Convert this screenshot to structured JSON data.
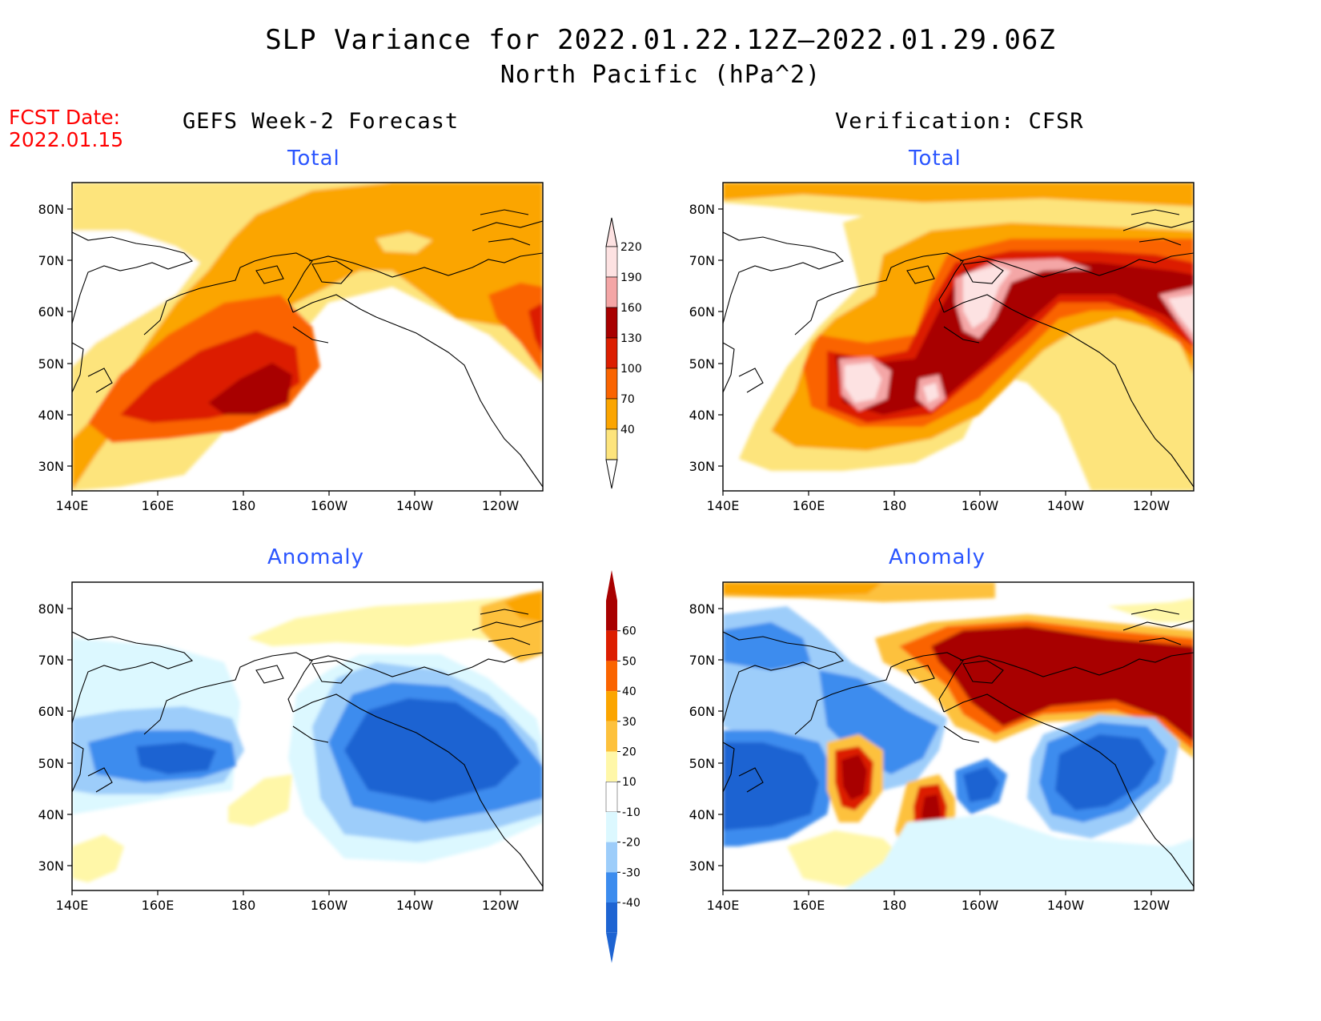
{
  "title": "SLP Variance for 2022.01.22.12Z–2022.01.29.06Z",
  "subtitle": "North Pacific (hPa^2)",
  "fcst_date_label": "FCST Date:",
  "fcst_date_value": "2022.01.15",
  "left_heading": "GEFS Week-2 Forecast",
  "right_heading": "Verification: CFSR",
  "panel_total_label": "Total",
  "panel_anomaly_label": "Anomaly",
  "lat_ticks": [
    "80N",
    "70N",
    "60N",
    "50N",
    "40N",
    "30N"
  ],
  "lon_ticks": [
    "140E",
    "160E",
    "180",
    "160W",
    "140W",
    "120W"
  ],
  "total_colorbar": {
    "labels": [
      "220",
      "190",
      "160",
      "130",
      "100",
      "70",
      "40"
    ],
    "colors": [
      "#fde2e2",
      "#f4a6a6",
      "#a80000",
      "#dc1e00",
      "#fa6400",
      "#fba500",
      "#fde47c"
    ]
  },
  "anomaly_colorbar": {
    "labels": [
      "60",
      "50",
      "40",
      "30",
      "20",
      "10",
      "-10",
      "-20",
      "-30",
      "-40"
    ],
    "colors": [
      "#a80000",
      "#dc1e00",
      "#fa6400",
      "#fba500",
      "#fdc13c",
      "#fff7a8",
      "#ffffff",
      "#dcf8ff",
      "#9dcdfa",
      "#3c8cee",
      "#1e64d2"
    ]
  },
  "map_colors": {
    "t1": "#fde47c",
    "t2": "#fba500",
    "t3": "#fa6400",
    "t4": "#dc1e00",
    "t5": "#a80000",
    "t6": "#f4a6a6",
    "t7": "#fde2e2",
    "a_pos1": "#fff7a8",
    "a_pos2": "#fdc13c",
    "a_pos3": "#fba500",
    "a_pos4": "#fa6400",
    "a_pos5": "#dc1e00",
    "a_pos6": "#a80000",
    "a_neg1": "#dcf8ff",
    "a_neg2": "#9dcdfa",
    "a_neg3": "#3c8cee",
    "a_neg4": "#1e64d2"
  }
}
